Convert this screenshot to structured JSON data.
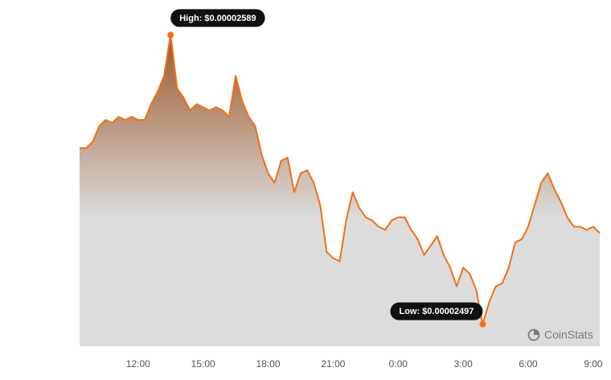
{
  "chart_data": {
    "type": "area",
    "watermark": "CoinStats",
    "color": "#f07014",
    "x": [
      9.3,
      9.6,
      9.9,
      10.2,
      10.5,
      10.8,
      11.1,
      11.4,
      11.7,
      12.0,
      12.3,
      12.6,
      12.9,
      13.2,
      13.5,
      13.8,
      14.1,
      14.4,
      14.7,
      15.0,
      15.3,
      15.6,
      15.9,
      16.2,
      16.5,
      16.8,
      17.1,
      17.4,
      17.7,
      18.0,
      18.3,
      18.6,
      18.9,
      19.2,
      19.5,
      19.8,
      20.1,
      20.4,
      20.7,
      21.0,
      21.3,
      21.6,
      21.9,
      22.2,
      22.5,
      22.8,
      23.1,
      23.4,
      23.7,
      24.0,
      24.3,
      24.6,
      24.9,
      25.2,
      25.5,
      25.8,
      26.1,
      26.4,
      26.7,
      27.0,
      27.3,
      27.6,
      27.9,
      28.2,
      28.5,
      28.8,
      29.1,
      29.4,
      29.7,
      30.0,
      30.3,
      30.6,
      30.9,
      31.2,
      31.5,
      31.8,
      32.1,
      32.4,
      32.7,
      33.0,
      33.3
    ],
    "values": [
      2.553e-05,
      2.553e-05,
      2.555e-05,
      2.56e-05,
      2.562e-05,
      2.561e-05,
      2.563e-05,
      2.562e-05,
      2.563e-05,
      2.562e-05,
      2.562e-05,
      2.567e-05,
      2.571e-05,
      2.576e-05,
      2.589e-05,
      2.572e-05,
      2.569e-05,
      2.565e-05,
      2.567e-05,
      2.566e-05,
      2.565e-05,
      2.566e-05,
      2.565e-05,
      2.563e-05,
      2.576e-05,
      2.568e-05,
      2.563e-05,
      2.56e-05,
      2.551e-05,
      2.545e-05,
      2.542e-05,
      2.549e-05,
      2.55e-05,
      2.539e-05,
      2.545e-05,
      2.546e-05,
      2.542e-05,
      2.535e-05,
      2.52e-05,
      2.518e-05,
      2.517e-05,
      2.53e-05,
      2.539e-05,
      2.534e-05,
      2.531e-05,
      2.53e-05,
      2.528e-05,
      2.527e-05,
      2.53e-05,
      2.531e-05,
      2.531e-05,
      2.527e-05,
      2.524e-05,
      2.519e-05,
      2.522e-05,
      2.525e-05,
      2.519e-05,
      2.515e-05,
      2.509e-05,
      2.515e-05,
      2.513e-05,
      2.508e-05,
      2.497e-05,
      2.504e-05,
      2.509e-05,
      2.51e-05,
      2.515e-05,
      2.523e-05,
      2.524e-05,
      2.528e-05,
      2.535e-05,
      2.542e-05,
      2.545e-05,
      2.54e-05,
      2.536e-05,
      2.531e-05,
      2.528e-05,
      2.528e-05,
      2.527e-05,
      2.528e-05,
      2.526e-05
    ],
    "xlim": [
      9.3,
      33.3
    ],
    "ylim": [
      2.49e-05,
      2.595e-05
    ],
    "xticks": [
      {
        "value": 12,
        "label": "12:00"
      },
      {
        "value": 15,
        "label": "15:00"
      },
      {
        "value": 18,
        "label": "18:00"
      },
      {
        "value": 21,
        "label": "21:00"
      },
      {
        "value": 24,
        "label": "0:00"
      },
      {
        "value": 27,
        "label": "3:00"
      },
      {
        "value": 30,
        "label": "6:00"
      },
      {
        "value": 33,
        "label": "9:00"
      }
    ],
    "annotations": [
      {
        "label": "High: $0.00002589",
        "x": 13.5,
        "y": 2.589e-05,
        "side": "right"
      },
      {
        "label": "Low: $0.00002497",
        "x": 27.9,
        "y": 2.497e-05,
        "side": "left"
      }
    ]
  }
}
